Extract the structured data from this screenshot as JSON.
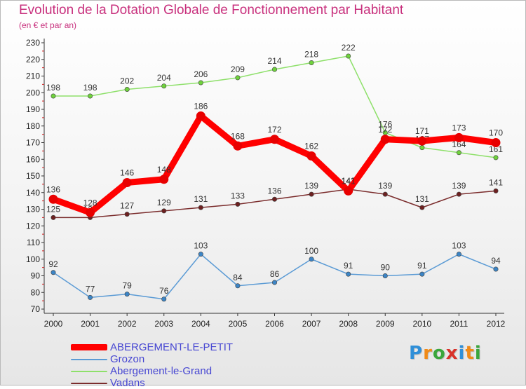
{
  "header": {
    "title": "Evolution de la Dotation Globale de Fonctionnement par Habitant",
    "subtitle": "(en € et par an)"
  },
  "branding": {
    "logo_letters": [
      "P",
      "r",
      "o",
      "x",
      "i",
      "t",
      "i"
    ],
    "logo_colors": [
      "#2f8fd8",
      "#f08a17",
      "#3aa63c",
      "#d8322a",
      "#2f8fd8",
      "#f08a17",
      "#3aa63c"
    ]
  },
  "chart_data": {
    "type": "line",
    "title": "Evolution de la Dotation Globale de Fonctionnement par Habitant",
    "subtitle": "(en € et par an)",
    "xlabel": "",
    "ylabel": "",
    "x": [
      "2000",
      "2001",
      "2002",
      "2003",
      "2004",
      "2005",
      "2006",
      "2007",
      "2008",
      "2009",
      "2010",
      "2011",
      "2012"
    ],
    "ylim": [
      70,
      230
    ],
    "yticks": [
      70,
      80,
      90,
      100,
      110,
      120,
      130,
      140,
      150,
      160,
      170,
      180,
      190,
      200,
      210,
      220,
      230
    ],
    "grid": false,
    "legend_position": "bottom-left",
    "series": [
      {
        "name": "Grozon",
        "color": "#5b9bd5",
        "marker": "#3c85c6",
        "values": [
          92,
          77,
          79,
          76,
          103,
          84,
          86,
          100,
          91,
          90,
          91,
          103,
          94
        ]
      },
      {
        "name": "Abergement-le-Grand",
        "color": "#8ee06a",
        "marker": "#6fd23c",
        "values": [
          198,
          198,
          202,
          204,
          206,
          209,
          214,
          218,
          222,
          176,
          167,
          164,
          161
        ]
      },
      {
        "name": "Vadans",
        "color": "#7b2d2d",
        "marker": "#6d2020",
        "values": [
          125,
          125,
          127,
          129,
          131,
          133,
          136,
          139,
          142,
          139,
          131,
          139,
          141
        ]
      },
      {
        "name": "ABERGEMENT-LE-PETIT",
        "color": "#ff0000",
        "marker": "#e80000",
        "thick": true,
        "values": [
          136,
          128,
          146,
          148,
          186,
          168,
          172,
          162,
          141,
          172,
          171,
          173,
          170
        ]
      }
    ],
    "legend_order": [
      "ABERGEMENT-LE-PETIT",
      "Grozon",
      "Abergement-le-Grand",
      "Vadans"
    ]
  }
}
